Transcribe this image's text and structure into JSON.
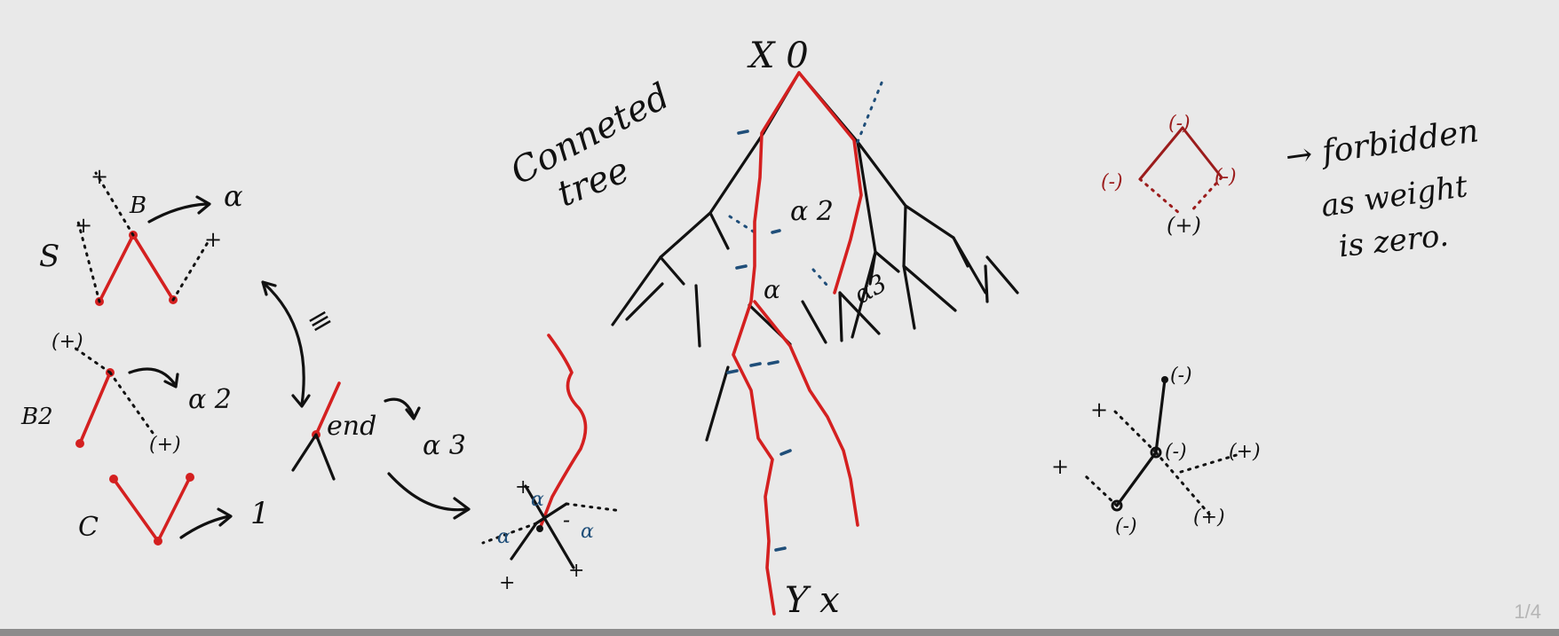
{
  "labels": {
    "s": "S",
    "b": "B",
    "alpha_b": "α",
    "b2": "B2",
    "alpha_2": "α 2",
    "c": "C",
    "one": "1",
    "equiv": "≡",
    "end": "end",
    "alpha_3": "α 3",
    "connected": "Conneted",
    "tree": "tree",
    "x0": "X 0",
    "alpha_sq": "α 2",
    "alpha_mid": "α",
    "alpha3_tree": "α3",
    "yx": "Y x",
    "forbidden_1": "→ forbidden",
    "forbidden_2": "as weight",
    "forbidden_3": "is zero.",
    "plus": "+",
    "plus_paren": "(+)",
    "minus_paren": "(-)",
    "minus": "-",
    "alpha_small": "α"
  },
  "page_counter": "1/4",
  "colors": {
    "red": "#d42020",
    "dark_red": "#9b1c1c",
    "blue": "#1f4e79",
    "ink": "#111111"
  }
}
